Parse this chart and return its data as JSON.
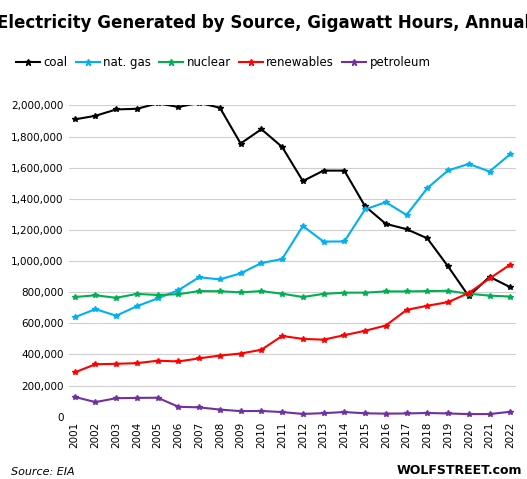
{
  "title": "Electricity Generated by Source, Gigawatt Hours, Annual",
  "years": [
    2001,
    2002,
    2003,
    2004,
    2005,
    2006,
    2007,
    2008,
    2009,
    2010,
    2011,
    2012,
    2013,
    2014,
    2015,
    2016,
    2017,
    2018,
    2019,
    2020,
    2021,
    2022
  ],
  "coal": [
    1910000,
    1933000,
    1974000,
    1978000,
    2013000,
    1990000,
    2016000,
    1985000,
    1755000,
    1847000,
    1733000,
    1514000,
    1581000,
    1581000,
    1352000,
    1239000,
    1205000,
    1146000,
    966000,
    774000,
    899000,
    832000
  ],
  "nat_gas": [
    639000,
    691000,
    649000,
    710000,
    760000,
    813000,
    896000,
    882000,
    921000,
    987000,
    1013000,
    1225000,
    1125000,
    1126000,
    1332000,
    1378000,
    1296000,
    1468000,
    1582000,
    1624000,
    1575000,
    1687000
  ],
  "nuclear": [
    769000,
    780000,
    764000,
    789000,
    782000,
    787000,
    807000,
    806000,
    799000,
    807000,
    790000,
    769000,
    789000,
    797000,
    797000,
    805000,
    805000,
    807000,
    809000,
    790000,
    778000,
    772000
  ],
  "renewables": [
    285000,
    337000,
    340000,
    344000,
    360000,
    355000,
    375000,
    393000,
    406000,
    430000,
    519000,
    500000,
    495000,
    524000,
    552000,
    586000,
    686000,
    713000,
    736000,
    795000,
    888000,
    977000
  ],
  "petroleum": [
    127000,
    94000,
    119000,
    121000,
    122000,
    64000,
    60000,
    46000,
    36000,
    37000,
    30000,
    18000,
    23000,
    30000,
    22000,
    20000,
    21000,
    24000,
    21000,
    17000,
    17000,
    32000
  ],
  "series_colors": {
    "coal": "#000000",
    "nat_gas": "#00b0f0",
    "nuclear": "#00b050",
    "renewables": "#ff0000",
    "petroleum": "#7030a0"
  },
  "series_labels": {
    "coal": "coal",
    "nat_gas": "nat. gas",
    "nuclear": "nuclear",
    "renewables": "renewables",
    "petroleum": "petroleum"
  },
  "series_order": [
    "coal",
    "nat_gas",
    "nuclear",
    "renewables",
    "petroleum"
  ],
  "ylim": [
    0,
    2000000
  ],
  "ytick_step": 200000,
  "source_text": "Source: EIA",
  "watermark": "WOLFSTREET.com",
  "bg_color": "#ffffff",
  "grid_color": "#d0d0d0",
  "title_fontsize": 12,
  "legend_fontsize": 8.5,
  "tick_fontsize": 7.5
}
